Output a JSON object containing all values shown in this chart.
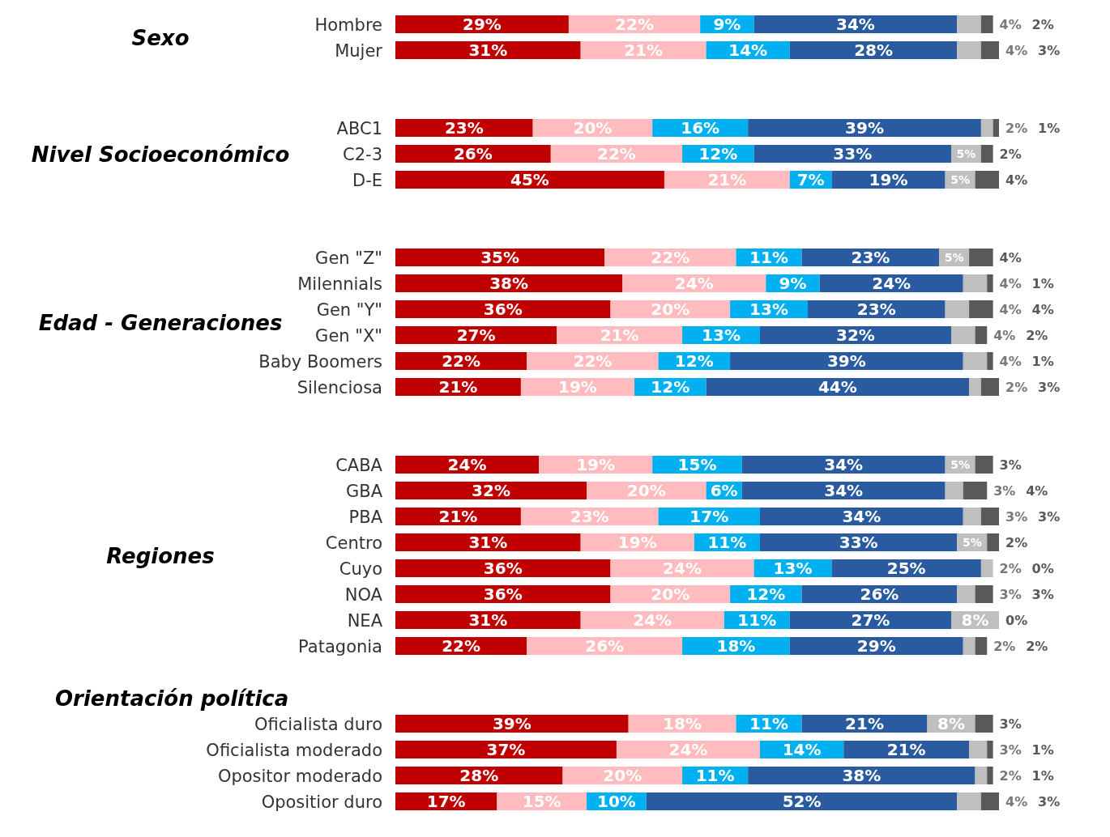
{
  "chart_data": {
    "type": "bar",
    "orientation": "horizontal",
    "stacked": true,
    "annotations": [
      "Sexo",
      "Nivel Socioeconómico",
      "Edad - Generaciones",
      "Regiones",
      "Orientación política"
    ],
    "categories": [
      "Hombre",
      "Mujer",
      null,
      null,
      "ABC1",
      "C2-3",
      "D-E",
      null,
      null,
      "Gen \"Z\"",
      "Milennials",
      "Gen \"Y\"",
      "Gen \"X\"",
      "Baby Boomers",
      "Silenciosa",
      null,
      null,
      "CABA",
      "GBA",
      "PBA",
      "Centro",
      "Cuyo",
      "NOA",
      "NEA",
      "Patagonia",
      null,
      null,
      "Oficialista duro",
      "Oficialista moderado",
      "Opositor moderado",
      "Opositior duro"
    ],
    "series": [
      {
        "color": "#c00000",
        "values": [
          29,
          31,
          null,
          null,
          23,
          26,
          45,
          null,
          null,
          35,
          38,
          36,
          27,
          22,
          21,
          null,
          null,
          24,
          32,
          21,
          31,
          36,
          36,
          31,
          22,
          null,
          null,
          39,
          37,
          28,
          17
        ],
        "value_labels": [
          "29%",
          "31%",
          null,
          null,
          "23%",
          "26%",
          "45%",
          null,
          null,
          "35%",
          "38%",
          "36%",
          "27%",
          "22%",
          "21%",
          null,
          null,
          "24%",
          "32%",
          "21%",
          "31%",
          "36%",
          "36%",
          "31%",
          "22%",
          null,
          null,
          "39%",
          "37%",
          "28%",
          "17%"
        ]
      },
      {
        "color": "#ffbbbe",
        "values": [
          22,
          21,
          null,
          null,
          20,
          22,
          21,
          null,
          null,
          22,
          24,
          20,
          21,
          22,
          19,
          null,
          null,
          19,
          20,
          23,
          19,
          24,
          20,
          24,
          26,
          null,
          null,
          18,
          24,
          20,
          15
        ],
        "value_labels": [
          "22%",
          "21%",
          null,
          null,
          "20%",
          "22%",
          "21%",
          null,
          null,
          "22%",
          "24%",
          "20%",
          "21%",
          "22%",
          "19%",
          null,
          null,
          "19%",
          "20%",
          "23%",
          "19%",
          "24%",
          "20%",
          "24%",
          "26%",
          null,
          null,
          "18%",
          "24%",
          "20%",
          "15%"
        ]
      },
      {
        "color": "#00b0f0",
        "values": [
          9,
          14,
          null,
          null,
          16,
          12,
          7,
          null,
          null,
          11,
          9,
          13,
          13,
          12,
          12,
          null,
          null,
          15,
          6,
          17,
          11,
          13,
          12,
          11,
          18,
          null,
          null,
          11,
          14,
          11,
          10
        ],
        "value_labels": [
          "9%",
          "14%",
          null,
          null,
          "16%",
          "12%",
          "7%",
          null,
          null,
          "11%",
          "9%",
          "13%",
          "13%",
          "12%",
          "12%",
          null,
          null,
          "15%",
          "6%",
          "17%",
          "11%",
          "13%",
          "12%",
          "11%",
          "18%",
          null,
          null,
          "11%",
          "14%",
          "11%",
          "10%"
        ]
      },
      {
        "color": "#2a5aa0",
        "values": [
          34,
          28,
          null,
          null,
          39,
          33,
          19,
          null,
          null,
          23,
          24,
          23,
          32,
          39,
          44,
          null,
          null,
          34,
          34,
          34,
          33,
          25,
          26,
          27,
          29,
          null,
          null,
          21,
          21,
          38,
          52
        ],
        "value_labels": [
          "34%",
          "28%",
          null,
          null,
          "39%",
          "33%",
          "19%",
          null,
          null,
          "23%",
          "24%",
          "23%",
          "32%",
          "39%",
          "44%",
          null,
          null,
          "34%",
          "34%",
          "34%",
          "33%",
          "25%",
          "26%",
          "27%",
          "29%",
          null,
          null,
          "21%",
          "21%",
          "38%",
          "52%"
        ]
      },
      {
        "color": "#bfbfbf",
        "values": [
          4,
          4,
          null,
          null,
          2,
          5,
          5,
          null,
          null,
          5,
          4,
          4,
          4,
          4,
          2,
          null,
          null,
          5,
          3,
          3,
          5,
          2,
          3,
          8,
          2,
          null,
          null,
          8,
          3,
          2,
          4
        ],
        "value_labels": [
          "4%",
          "4%",
          null,
          null,
          "2%",
          "5%",
          "5%",
          null,
          null,
          "5%",
          "4%",
          "4%",
          "4%",
          "4%",
          "2%",
          null,
          null,
          "5%",
          "3%",
          "3%",
          "5%",
          "2%",
          "3%",
          "8%",
          "2%",
          null,
          null,
          "8%",
          "3%",
          "2%",
          "4%"
        ]
      },
      {
        "color": "#595959",
        "values": [
          2,
          3,
          null,
          null,
          1,
          2,
          4,
          null,
          null,
          4,
          1,
          4,
          2,
          1,
          3,
          null,
          null,
          3,
          4,
          3,
          2,
          0,
          3,
          0,
          2,
          null,
          null,
          3,
          1,
          1,
          3
        ],
        "value_labels": [
          "2%",
          "3%",
          null,
          null,
          "1%",
          "2%",
          "4%",
          null,
          null,
          "4%",
          "1%",
          "4%",
          "2%",
          "1%",
          "3%",
          null,
          null,
          "3%",
          "4%",
          "3%",
          "2%",
          "0%",
          "3%",
          "0%",
          "2%",
          null,
          null,
          "3%",
          "1%",
          "1%",
          "3%"
        ]
      }
    ]
  }
}
